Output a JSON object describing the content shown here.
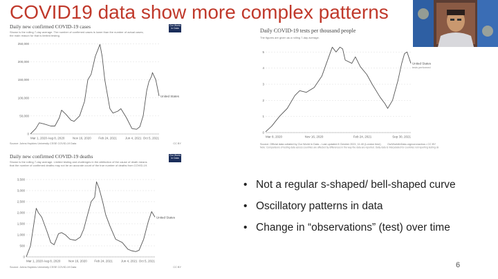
{
  "slide": {
    "title": "COVID19 data show more complex patterns",
    "bullets": [
      "Not a regular s-shaped/ bell-shaped curve",
      "Oscillatory patterns in data",
      "Change in “observations” (test) over time"
    ],
    "page_number": "6",
    "title_color": "#c0392b"
  },
  "charts": {
    "cases": {
      "title": "Daily new confirmed COVID-19 cases",
      "subtitle": "Shown is the rolling 7-day average. The number of confirmed cases is lower than the number of actual cases; the main reason for that is limited testing.",
      "source": "Source: Johns Hopkins University CSSE COVID-19 Data",
      "license": "CC BY",
      "logo": "Our World in Data",
      "series_label": "United States"
    },
    "tests": {
      "title": "Daily COVID-19 tests per thousand people",
      "subtitle": "The figures are given as a rolling 7-day average.",
      "source": "Source: Official data collated by Our World in Data – Last updated 8 October 2021, 11:40 (London time)",
      "note": "Note: Comparisons of testing data across countries are affected by differences in the way the data are reported. Daily data is interpolated for countries not reporting testing data on a daily basis. Details can be found at our Testing Dataset page.",
      "license": "OurWorldInData.org/coronavirus • CC BY",
      "series_label": "United States",
      "series_sublabel": "tests performed"
    },
    "deaths": {
      "title": "Daily new confirmed COVID-19 deaths",
      "subtitle": "Shown is the rolling 7-day average. Limited testing and challenges in the attribution of the cause of death means that the number of confirmed deaths may not be an accurate count of the true number of deaths from COVID-19.",
      "source": "Source: Johns Hopkins University CSSE COVID-19 Data",
      "license": "CC BY",
      "logo": "Our World in Data",
      "series_label": "United States"
    }
  },
  "chart_data": [
    {
      "type": "line",
      "title": "Daily new confirmed COVID-19 cases",
      "xlabel": "",
      "ylabel": "",
      "x_ticks": [
        "Mar 1, 2020",
        "Aug 8, 2020",
        "Nov 16, 2020",
        "Feb 24, 2021",
        "Jun 4, 2021",
        "Oct 5, 2021"
      ],
      "y_ticks": [
        "0",
        "50,000",
        "100,000",
        "150,000",
        "200,000",
        "250,000"
      ],
      "ylim": [
        0,
        260000
      ],
      "grid": true,
      "series": [
        {
          "name": "United States",
          "color": "#555555",
          "x": [
            "2020-03-01",
            "2020-03-25",
            "2020-04-10",
            "2020-05-01",
            "2020-06-01",
            "2020-06-20",
            "2020-07-10",
            "2020-07-20",
            "2020-08-08",
            "2020-09-01",
            "2020-09-15",
            "2020-10-10",
            "2020-11-01",
            "2020-11-16",
            "2020-12-01",
            "2020-12-20",
            "2021-01-10",
            "2021-01-20",
            "2021-02-01",
            "2021-02-24",
            "2021-03-10",
            "2021-04-01",
            "2021-04-15",
            "2021-05-10",
            "2021-06-04",
            "2021-06-25",
            "2021-07-10",
            "2021-07-25",
            "2021-08-10",
            "2021-08-20",
            "2021-09-01",
            "2021-09-05",
            "2021-09-20",
            "2021-10-05"
          ],
          "values": [
            100,
            15000,
            31000,
            28000,
            22000,
            22000,
            45000,
            66000,
            55000,
            38000,
            35000,
            50000,
            90000,
            150000,
            165000,
            215000,
            248000,
            215000,
            150000,
            70000,
            58000,
            63000,
            70000,
            45000,
            15000,
            13000,
            20000,
            50000,
            120000,
            145000,
            160000,
            170000,
            150000,
            105000
          ]
        }
      ]
    },
    {
      "type": "line",
      "title": "Daily COVID-19 tests per thousand people",
      "xlabel": "",
      "ylabel": "",
      "x_ticks": [
        "Mar 8, 2020",
        "Nov 16, 2020",
        "Feb 24, 2021",
        "Sep 30, 2021"
      ],
      "y_ticks": [
        "0",
        "1",
        "2",
        "3",
        "4",
        "5"
      ],
      "ylim": [
        0,
        5.4
      ],
      "grid": true,
      "series": [
        {
          "name": "United States",
          "color": "#555555",
          "x": [
            "2020-03-08",
            "2020-04-01",
            "2020-05-01",
            "2020-06-01",
            "2020-07-01",
            "2020-07-20",
            "2020-08-15",
            "2020-09-15",
            "2020-10-15",
            "2020-11-16",
            "2020-11-25",
            "2020-12-10",
            "2020-12-25",
            "2021-01-05",
            "2021-01-15",
            "2021-02-10",
            "2021-02-24",
            "2021-03-15",
            "2021-04-10",
            "2021-05-01",
            "2021-06-01",
            "2021-06-20",
            "2021-07-01",
            "2021-07-20",
            "2021-08-10",
            "2021-08-25",
            "2021-09-05",
            "2021-09-15",
            "2021-09-30"
          ],
          "values": [
            0.05,
            0.4,
            1.0,
            1.5,
            2.3,
            2.6,
            2.5,
            2.8,
            3.5,
            4.9,
            5.3,
            5.0,
            5.3,
            5.2,
            4.5,
            4.3,
            4.7,
            4.1,
            3.6,
            3.0,
            2.2,
            1.8,
            1.5,
            2.0,
            3.2,
            4.3,
            4.9,
            5.0,
            4.3
          ]
        }
      ]
    },
    {
      "type": "line",
      "title": "Daily new confirmed COVID-19 deaths",
      "xlabel": "",
      "ylabel": "",
      "x_ticks": [
        "Mar 1, 2020",
        "Aug 8, 2020",
        "Nov 16, 2020",
        "Feb 24, 2021",
        "Jun 4, 2021",
        "Oct 5, 2021"
      ],
      "y_ticks": [
        "0",
        "500",
        "1,000",
        "1,500",
        "2,000",
        "2,500",
        "3,000",
        "3,500"
      ],
      "ylim": [
        0,
        3500
      ],
      "grid": true,
      "series": [
        {
          "name": "United States",
          "color": "#555555",
          "x": [
            "2020-03-01",
            "2020-03-20",
            "2020-04-15",
            "2020-04-25",
            "2020-05-10",
            "2020-06-01",
            "2020-06-20",
            "2020-07-05",
            "2020-07-25",
            "2020-08-08",
            "2020-08-25",
            "2020-09-15",
            "2020-10-10",
            "2020-11-01",
            "2020-11-16",
            "2020-12-01",
            "2020-12-20",
            "2021-01-05",
            "2021-01-13",
            "2021-01-25",
            "2021-02-10",
            "2021-02-24",
            "2021-03-15",
            "2021-04-10",
            "2021-05-10",
            "2021-06-04",
            "2021-06-20",
            "2021-07-10",
            "2021-07-25",
            "2021-08-15",
            "2021-09-05",
            "2021-09-20",
            "2021-10-05"
          ],
          "values": [
            5,
            500,
            2200,
            2000,
            1800,
            1200,
            650,
            550,
            1050,
            1100,
            1000,
            800,
            750,
            900,
            1250,
            1800,
            2500,
            2700,
            3400,
            3100,
            2500,
            1900,
            1400,
            800,
            650,
            350,
            280,
            240,
            300,
            800,
            1600,
            2050,
            1800
          ]
        }
      ]
    }
  ]
}
